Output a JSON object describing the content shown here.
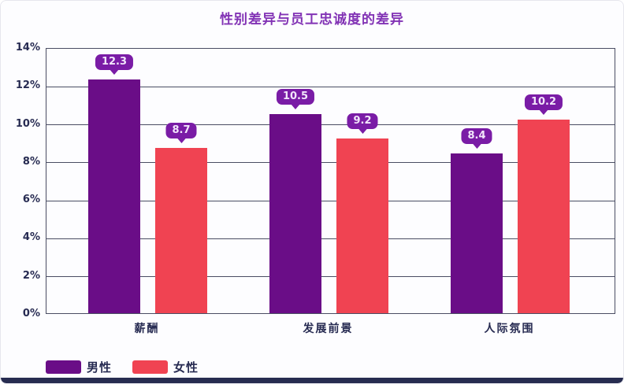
{
  "title": "性别差异与员工忠诚度的差异",
  "colors": {
    "male_bar": "#6a0d87",
    "female_bar": "#f04352",
    "callout_bg": "#7a1ca6",
    "callout_text": "#f2e6fb",
    "axis_text": "#272b52",
    "grid_line": "#4a4d63",
    "title_text": "#8233b5",
    "bottom_strip": "#272c50",
    "background": "#fdfdff"
  },
  "chart_data": {
    "type": "bar",
    "categories": [
      "薪酬",
      "发展前景",
      "人际氛围"
    ],
    "series": [
      {
        "name": "男性",
        "key": "male",
        "values": [
          12.3,
          10.5,
          8.4
        ]
      },
      {
        "name": "女性",
        "key": "female",
        "values": [
          8.7,
          9.2,
          10.2
        ]
      }
    ],
    "title": "性别差异与员工忠诚度的差异",
    "xlabel": "",
    "ylabel": "",
    "ylim": [
      0,
      14
    ],
    "ytick_step": 2,
    "ytick_labels": [
      "0%",
      "2%",
      "4%",
      "6%",
      "8%",
      "10%",
      "12%",
      "14%"
    ],
    "grid": true,
    "data_labels": "callout-above-bar",
    "legend_position": "bottom-left"
  },
  "legend": {
    "items": [
      {
        "label": "男性",
        "key": "male"
      },
      {
        "label": "女性",
        "key": "female"
      }
    ]
  }
}
